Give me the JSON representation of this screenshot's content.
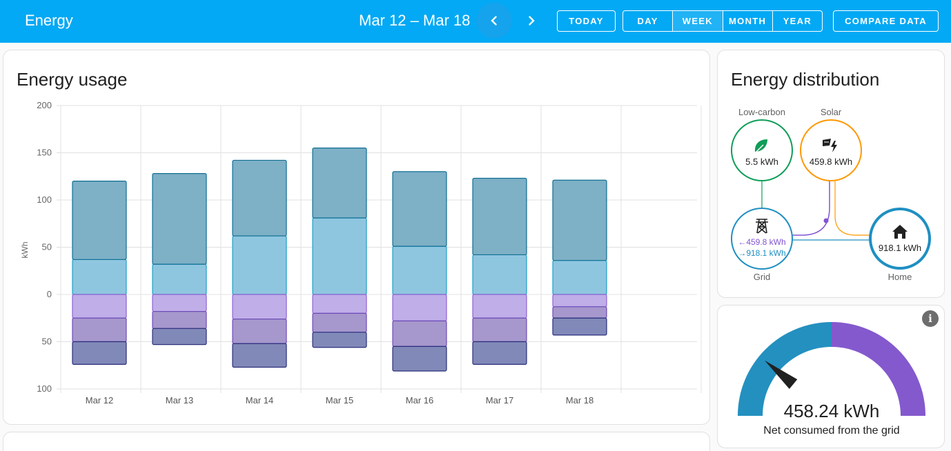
{
  "header": {
    "title": "Energy",
    "date_range": "Mar 12 – Mar 18",
    "today_label": "TODAY",
    "periods": [
      "DAY",
      "WEEK",
      "MONTH",
      "YEAR"
    ],
    "active_period": "WEEK",
    "compare_label": "COMPARE DATA",
    "prev_icon": "chevron-left-icon",
    "next_icon": "chevron-right-icon"
  },
  "usage": {
    "title": "Energy usage",
    "chart_data": {
      "type": "bar",
      "ylabel": "kWh",
      "ylim": [
        -100,
        200
      ],
      "y_ticks": [
        200,
        150,
        100,
        50,
        0,
        -50,
        -100
      ],
      "y_tick_labels": [
        "200",
        "150",
        "100",
        "50",
        "0",
        "50",
        "100"
      ],
      "categories": [
        "Mar 12",
        "Mar 13",
        "Mar 14",
        "Mar 15",
        "Mar 16",
        "Mar 17",
        "Mar 18"
      ],
      "stacks_positive": [
        {
          "color": "#8fc6df",
          "stroke": "#1ea0c8",
          "values": [
            37,
            32,
            62,
            81,
            51,
            42,
            36
          ]
        },
        {
          "color": "#7eb0c6",
          "stroke": "#0f6e93",
          "values": [
            83,
            96,
            80,
            74,
            79,
            81,
            85
          ]
        }
      ],
      "stacks_negative": [
        {
          "color": "#c0aee8",
          "stroke": "#8d62d4",
          "values": [
            25,
            18,
            26,
            20,
            28,
            25,
            13
          ]
        },
        {
          "color": "#a697cc",
          "stroke": "#6d4cb8",
          "values": [
            25,
            18,
            26,
            20,
            27,
            25,
            12
          ]
        },
        {
          "color": "#8189b8",
          "stroke": "#2a2e7c",
          "values": [
            24,
            17,
            25,
            16,
            26,
            24,
            18
          ]
        }
      ],
      "grid": true
    }
  },
  "distribution": {
    "title": "Energy distribution",
    "low_carbon": {
      "label": "Low-carbon",
      "value": "5.5 kWh",
      "icon": "leaf-icon",
      "color": "#0f9d58"
    },
    "solar": {
      "label": "Solar",
      "value": "459.8 kWh",
      "icon": "solar-power-icon",
      "color": "#ff9800"
    },
    "grid": {
      "label": "Grid",
      "from_value": "459.8 kWh",
      "to_value": "918.1 kWh",
      "icon": "transmission-tower-icon",
      "color": "#1f8fc2",
      "return_color": "#8353d1"
    },
    "home": {
      "label": "Home",
      "value": "918.1 kWh",
      "icon": "home-icon",
      "color": "#1f8fc2"
    }
  },
  "gauge": {
    "value": "458.24 kWh",
    "label": "Net consumed from the grid",
    "fraction": 0.22,
    "colors": {
      "left": "#2390c0",
      "right": "#8459cd",
      "needle": "#212121"
    },
    "info_icon": "info-icon"
  }
}
